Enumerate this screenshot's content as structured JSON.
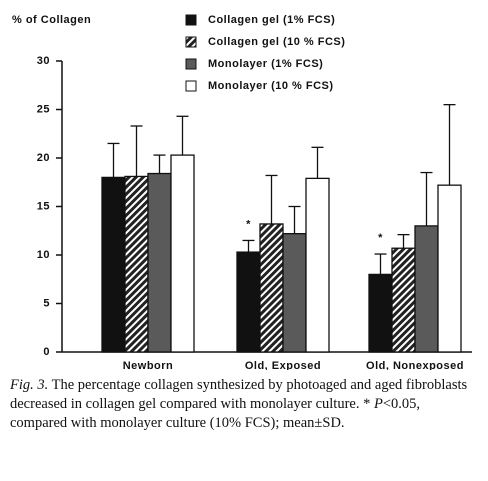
{
  "chart_data": {
    "type": "bar",
    "y_label": "% of Collagen",
    "categories": [
      "Newborn",
      "Old,  Exposed",
      "Old,  Nonexposed"
    ],
    "series": [
      {
        "name": "Collagen gel (1% FCS)",
        "color": "#111111",
        "values": [
          18.0,
          10.3,
          8.0
        ],
        "errors": [
          3.5,
          1.2,
          2.1
        ]
      },
      {
        "name": "Collagen gel (10 % FCS)",
        "color": "#222222",
        "pattern": "hatch",
        "values": [
          18.1,
          13.2,
          10.7
        ],
        "errors": [
          5.2,
          5.0,
          1.4
        ]
      },
      {
        "name": "Monolayer (1% FCS)",
        "color": "#5a5a5a",
        "values": [
          18.4,
          12.2,
          13.0
        ],
        "errors": [
          1.9,
          2.8,
          5.5
        ]
      },
      {
        "name": "Monolayer (10 % FCS)",
        "color": "#ffffff",
        "values": [
          20.3,
          17.9,
          17.2
        ],
        "errors": [
          4.0,
          3.2,
          8.3
        ]
      }
    ],
    "markers": [
      null,
      "*",
      "*"
    ],
    "ylim": [
      0,
      30
    ],
    "yticks": [
      0,
      5,
      10,
      15,
      20,
      25,
      30
    ],
    "grid": false
  },
  "caption": {
    "label": "Fig. 3.",
    "text": " The percentage collagen synthesized by photoaged and aged fibroblasts decreased in collagen gel compared with monolayer culture. * ",
    "p": "P",
    "rest": "<0.05, compared with monolayer culture (10% FCS); mean±SD."
  }
}
